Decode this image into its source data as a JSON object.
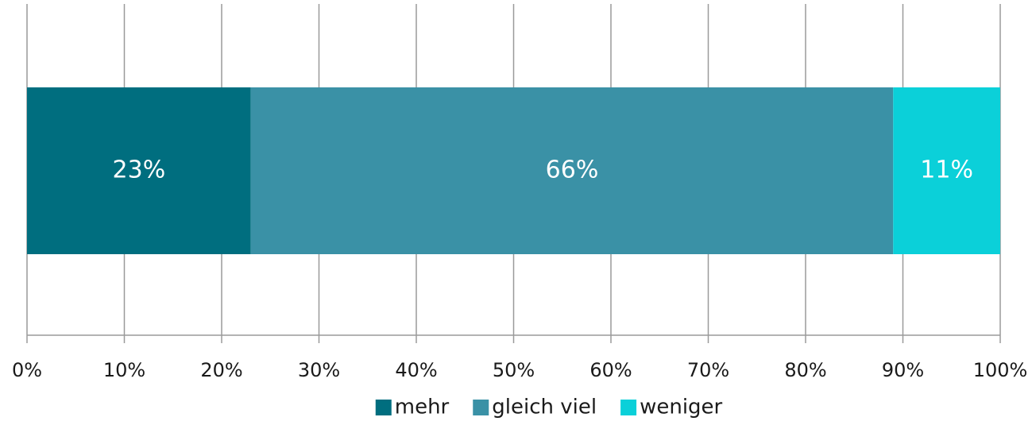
{
  "chart_data": {
    "type": "stacked-barh",
    "categories": [
      null
    ],
    "series": [
      {
        "name": "mehr",
        "color": "#006e7f",
        "values": [
          23
        ],
        "value_labels": [
          "23%"
        ]
      },
      {
        "name": "gleich viel",
        "color": "#3a91a6",
        "values": [
          66
        ],
        "value_labels": [
          "66%"
        ]
      },
      {
        "name": "weniger",
        "color": "#0bd0d9",
        "values": [
          11
        ],
        "value_labels": [
          "11%"
        ]
      }
    ],
    "xlim": [
      0,
      100
    ],
    "xticks": [
      {
        "value": 0,
        "label": "0%"
      },
      {
        "value": 10,
        "label": "10%"
      },
      {
        "value": 20,
        "label": "20%"
      },
      {
        "value": 30,
        "label": "30%"
      },
      {
        "value": 40,
        "label": "40%"
      },
      {
        "value": 50,
        "label": "50%"
      },
      {
        "value": 60,
        "label": "60%"
      },
      {
        "value": 70,
        "label": "70%"
      },
      {
        "value": 80,
        "label": "80%"
      },
      {
        "value": 90,
        "label": "90%"
      },
      {
        "value": 100,
        "label": "100%"
      }
    ],
    "grid": true,
    "legend": "bottom"
  }
}
